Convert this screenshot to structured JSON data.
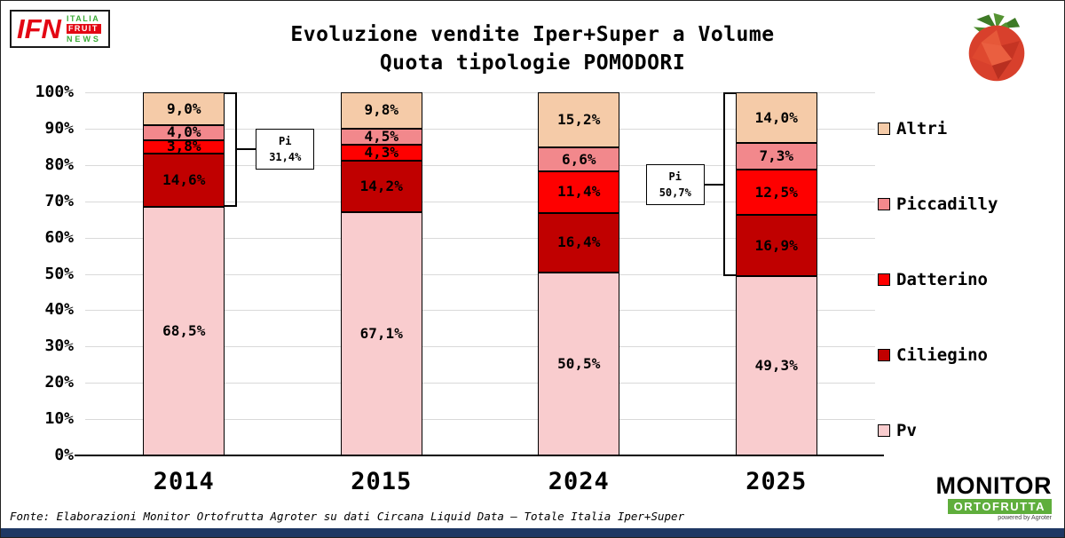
{
  "header": {
    "title_line1": "Evoluzione vendite Iper+Super a Volume",
    "title_line2": "Quota tipologie POMODORI",
    "ifn_logo": {
      "main": "IFN",
      "italia": "ITALIA",
      "fruit": "FRUIT",
      "news": "NEWS"
    }
  },
  "chart_data": {
    "type": "bar",
    "stacked": true,
    "title": "Evoluzione vendite Iper+Super a Volume — Quota tipologie POMODORI",
    "categories": [
      "2014",
      "2015",
      "2024",
      "2025"
    ],
    "series": [
      {
        "name": "Pv",
        "color": "#F9CCCE",
        "values": [
          68.5,
          67.1,
          50.5,
          49.3
        ],
        "labels": [
          "68,5%",
          "67,1%",
          "50,5%",
          "49,3%"
        ]
      },
      {
        "name": "Ciliegino",
        "color": "#C00000",
        "values": [
          14.6,
          14.2,
          16.4,
          16.9
        ],
        "labels": [
          "14,6%",
          "14,2%",
          "16,4%",
          "16,9%"
        ]
      },
      {
        "name": "Datterino",
        "color": "#FE0000",
        "values": [
          3.8,
          4.3,
          11.4,
          12.5
        ],
        "labels": [
          "3,8%",
          "4,3%",
          "11,4%",
          "12,5%"
        ]
      },
      {
        "name": "Piccadilly",
        "color": "#F2888C",
        "values": [
          4.0,
          4.5,
          6.6,
          7.3
        ],
        "labels": [
          "4,0%",
          "4,5%",
          "6,6%",
          "7,3%"
        ]
      },
      {
        "name": "Altri",
        "color": "#F5CBA8",
        "values": [
          9.0,
          9.8,
          15.2,
          14.0
        ],
        "labels": [
          "9,0%",
          "9,8%",
          "15,2%",
          "14,0%"
        ]
      }
    ],
    "y_ticks": [
      "0%",
      "10%",
      "20%",
      "30%",
      "40%",
      "50%",
      "60%",
      "70%",
      "80%",
      "90%",
      "100%"
    ],
    "ylim": [
      0,
      100
    ],
    "grid": true,
    "legend_position": "right",
    "legend_order": [
      "Altri",
      "Piccadilly",
      "Datterino",
      "Ciliegino",
      "Pv"
    ],
    "annotations": [
      {
        "line1": "Pi",
        "line2": "31,4%",
        "category_index": 0,
        "side": "right"
      },
      {
        "line1": "Pi",
        "line2": "50,7%",
        "category_index": 3,
        "side": "left"
      }
    ]
  },
  "footer": {
    "fonte": "Fonte: Elaborazioni Monitor Ortofrutta Agroter su dati Circana Liquid Data – Totale Italia Iper+Super",
    "monitor_logo": {
      "line1": "MONITOR",
      "line2": "ORTOFRUTTA",
      "powered": "powered by Agroter"
    }
  }
}
